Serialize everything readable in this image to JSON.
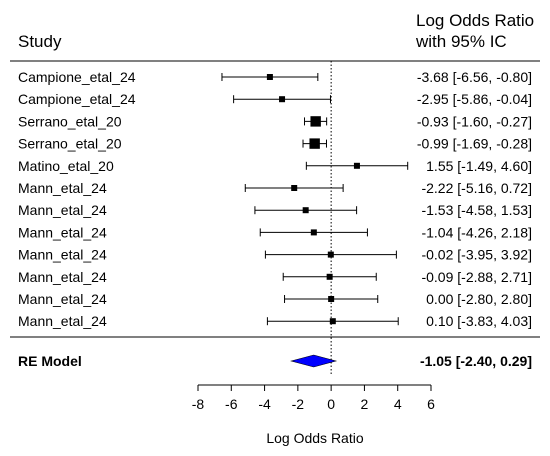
{
  "chart_data": {
    "type": "forest",
    "header": {
      "study_label": "Study",
      "estimate_label_line1": "Log Odds Ratio",
      "estimate_label_line2": "with 95% IC"
    },
    "xlabel": "Log Odds Ratio",
    "xlim": [
      -8,
      6
    ],
    "xticks": [
      -8,
      -6,
      -4,
      -2,
      0,
      2,
      4,
      6
    ],
    "xtick_labels": [
      "-8",
      "-6",
      "-4",
      "-2",
      "0",
      "2",
      "4",
      "6"
    ],
    "reference_line": 0,
    "studies": [
      {
        "name": "Campione_etal_24",
        "est": -3.68,
        "lo": -6.56,
        "hi": -0.8,
        "text": "-3.68 [-6.56, -0.80]",
        "weight": 1.0
      },
      {
        "name": "Campione_etal_24",
        "est": -2.95,
        "lo": -5.86,
        "hi": -0.04,
        "text": "-2.95 [-5.86, -0.04]",
        "weight": 1.0
      },
      {
        "name": "Serrano_etal_20",
        "est": -0.93,
        "lo": -1.6,
        "hi": -0.27,
        "text": "-0.93 [-1.60, -0.27]",
        "weight": 4.0
      },
      {
        "name": "Serrano_etal_20",
        "est": -0.99,
        "lo": -1.69,
        "hi": -0.28,
        "text": "-0.99 [-1.69, -0.28]",
        "weight": 4.0
      },
      {
        "name": "Matino_etal_20",
        "est": 1.55,
        "lo": -1.49,
        "hi": 4.6,
        "text": "1.55 [-1.49,  4.60]",
        "weight": 1.0
      },
      {
        "name": "Mann_etal_24",
        "est": -2.22,
        "lo": -5.16,
        "hi": 0.72,
        "text": "-2.22 [-5.16,  0.72]",
        "weight": 1.0
      },
      {
        "name": "Mann_etal_24",
        "est": -1.53,
        "lo": -4.58,
        "hi": 1.53,
        "text": "-1.53 [-4.58,  1.53]",
        "weight": 1.0
      },
      {
        "name": "Mann_etal_24",
        "est": -1.04,
        "lo": -4.26,
        "hi": 2.18,
        "text": "-1.04 [-4.26,  2.18]",
        "weight": 1.0
      },
      {
        "name": "Mann_etal_24",
        "est": -0.02,
        "lo": -3.95,
        "hi": 3.92,
        "text": "-0.02 [-3.95,  3.92]",
        "weight": 1.0
      },
      {
        "name": "Mann_etal_24",
        "est": -0.09,
        "lo": -2.88,
        "hi": 2.71,
        "text": "-0.09 [-2.88,  2.71]",
        "weight": 1.0
      },
      {
        "name": "Mann_etal_24",
        "est": 0.0,
        "lo": -2.8,
        "hi": 2.8,
        "text": "0.00 [-2.80,  2.80]",
        "weight": 1.0
      },
      {
        "name": "Mann_etal_24",
        "est": 0.1,
        "lo": -3.83,
        "hi": 4.03,
        "text": "0.10 [-3.83,  4.03]",
        "weight": 1.0
      }
    ],
    "summary": {
      "name": "RE Model",
      "est": -1.05,
      "lo": -2.4,
      "hi": 0.29,
      "text": "-1.05 [-2.40,  0.29]",
      "color": "#0000ff"
    }
  }
}
